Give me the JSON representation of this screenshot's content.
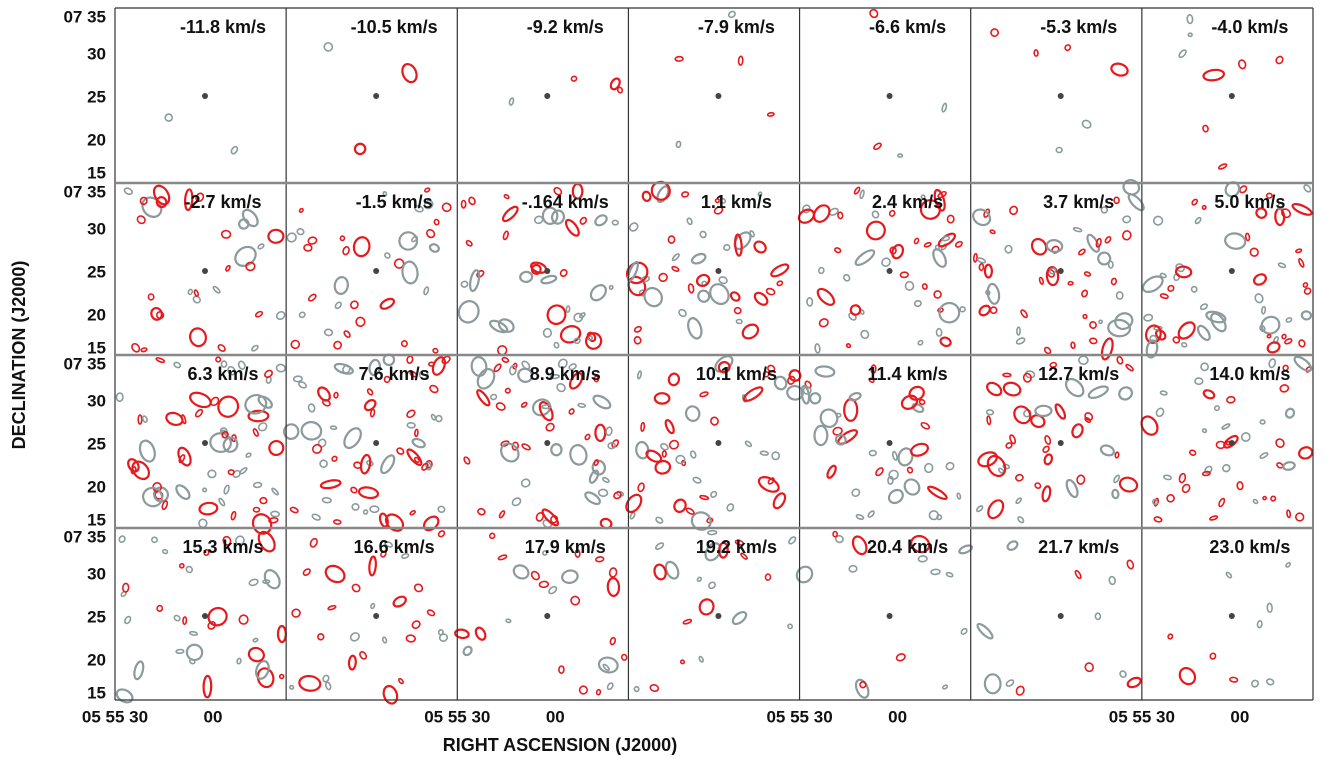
{
  "figure": {
    "y_axis_label": "DECLINATION (J2000)",
    "x_axis_label": "RIGHT ASCENSION (J2000)",
    "y_tick_labels": [
      "07 35",
      "30",
      "25",
      "20",
      "15"
    ],
    "x_tick_labels": [
      "05 55 30",
      "00"
    ],
    "panels": [
      "-11.8 km/s",
      "-10.5 km/s",
      "-9.2 km/s",
      "-7.9 km/s",
      "-6.6 km/s",
      "-5.3 km/s",
      "-4.0 km/s",
      "-2.7 km/s",
      "-1.5 km/s",
      "-.164 km/s",
      "1.1 km/s",
      "2.4 km/s",
      "3.7 km/s",
      "5.0 km/s",
      "6.3 km/s",
      "7.6 km/s",
      "8.9 km/s",
      "10.1 km/s",
      "11.4 km/s",
      "12.7 km/s",
      "14.0 km/s",
      "15.3 km/s",
      "16.6 km/s",
      "17.9 km/s",
      "19.2 km/s",
      "20.4 km/s",
      "21.7 km/s",
      "23.0 km/s"
    ]
  }
}
